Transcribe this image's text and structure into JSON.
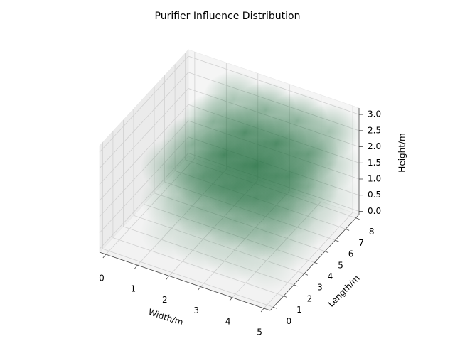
{
  "chart_data": {
    "type": "scatter3d",
    "title": "Purifier Influence Distribution",
    "xlabel": "Width/m",
    "ylabel": "Length/m",
    "zlabel": "Height/m",
    "color": "#1b6b3a",
    "grid": true,
    "xlim": [
      -0.2,
      5.2
    ],
    "ylim": [
      -0.3,
      8.3
    ],
    "zlim": [
      -0.1,
      3.2
    ],
    "xticks": [
      0,
      1,
      2,
      3,
      4,
      5
    ],
    "yticks": [
      0,
      1,
      2,
      3,
      4,
      5,
      6,
      7,
      8
    ],
    "zticks": [
      {
        "value": 0,
        "label": "0.0"
      },
      {
        "value": 0.5,
        "label": "0.5"
      },
      {
        "value": 1,
        "label": "1.0"
      },
      {
        "value": 1.5,
        "label": "1.5"
      },
      {
        "value": 2,
        "label": "2.0"
      },
      {
        "value": 2.5,
        "label": "2.5"
      },
      {
        "value": 3,
        "label": "3.0"
      }
    ],
    "x": [
      1.5,
      1.5,
      1.5,
      1.5,
      1.5,
      1.5,
      1.5,
      1.5,
      1.5,
      1.5,
      1.5,
      1.5,
      2.5,
      2.5,
      2.5,
      2.5,
      2.5,
      2.5,
      2.5,
      2.5,
      2.5,
      2.5,
      2.5,
      2.5,
      3.5,
      3.5,
      3.5,
      3.5,
      3.5,
      3.5,
      3.5,
      3.5,
      3.5,
      3.5,
      3.5,
      3.5,
      4.5,
      4.5,
      4.5,
      4.5,
      4.5,
      4.5,
      4.5,
      4.5,
      4.5,
      4.5,
      4.5,
      4.5
    ],
    "y": [
      1.5,
      1.5,
      1.5,
      3.5,
      3.5,
      3.5,
      5.5,
      5.5,
      5.5,
      7.5,
      7.5,
      7.5,
      1.5,
      1.5,
      1.5,
      3.5,
      3.5,
      3.5,
      5.5,
      5.5,
      5.5,
      7.5,
      7.5,
      7.5,
      1.5,
      1.5,
      1.5,
      3.5,
      3.5,
      3.5,
      5.5,
      5.5,
      5.5,
      7.5,
      7.5,
      7.5,
      1.5,
      1.5,
      1.5,
      3.5,
      3.5,
      3.5,
      5.5,
      5.5,
      5.5,
      7.5,
      7.5,
      7.5
    ],
    "z": [
      0.5,
      1.5,
      2.5,
      0.5,
      1.5,
      2.5,
      0.5,
      1.5,
      2.5,
      0.5,
      1.5,
      2.5,
      0.5,
      1.5,
      2.5,
      0.5,
      1.5,
      2.5,
      0.5,
      1.5,
      2.5,
      0.5,
      1.5,
      2.5,
      0.5,
      1.5,
      2.5,
      0.5,
      1.5,
      2.5,
      0.5,
      1.5,
      2.5,
      0.5,
      1.5,
      2.5,
      0.5,
      1.5,
      2.5,
      0.5,
      1.5,
      2.5,
      0.5,
      1.5,
      2.5,
      0.5,
      1.5,
      2.5
    ],
    "values": [
      0.17,
      0.32,
      0.44,
      0.25,
      0.46,
      0.63,
      0.25,
      0.46,
      0.63,
      0.18,
      0.34,
      0.47,
      0.25,
      0.46,
      0.63,
      0.35,
      0.65,
      0.9,
      0.35,
      0.65,
      0.9,
      0.26,
      0.49,
      0.68,
      0.25,
      0.46,
      0.63,
      0.35,
      0.65,
      0.9,
      0.35,
      0.65,
      0.9,
      0.26,
      0.49,
      0.68,
      0.18,
      0.34,
      0.47,
      0.26,
      0.49,
      0.68,
      0.26,
      0.49,
      0.68,
      0.2,
      0.37,
      0.51
    ]
  }
}
